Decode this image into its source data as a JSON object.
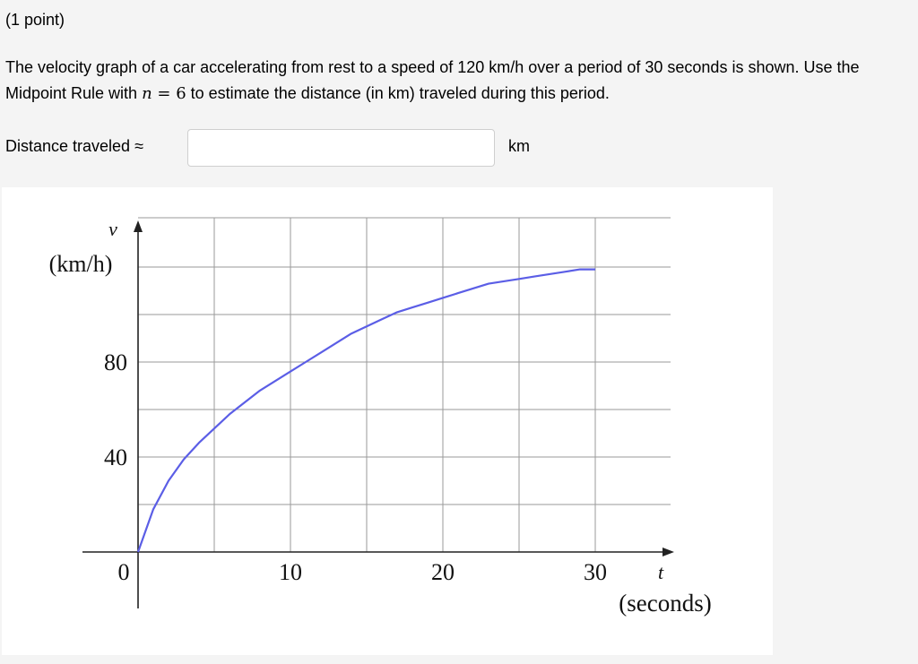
{
  "question": {
    "points": "(1 point)",
    "text_before_n": "The velocity graph of a car accelerating from rest to a speed of 120 km/h over a period of 30 seconds is shown. Use the Midpoint Rule with ",
    "math_var": "n",
    "math_eq": " = 6",
    "text_after_n": " to estimate the distance (in km) traveled during this period."
  },
  "answer": {
    "label": "Distance traveled ≈",
    "value": "",
    "placeholder": "",
    "unit": "km"
  },
  "chart_data": {
    "type": "line",
    "x_axis": {
      "symbol": "t",
      "label": "(seconds)",
      "range": [
        0,
        30
      ],
      "ticks": [
        0,
        10,
        20,
        30
      ],
      "tick_labels": [
        "0",
        "10",
        "20",
        "30"
      ],
      "grid_step": 5
    },
    "y_axis": {
      "symbol": "v",
      "label": "(km/h)",
      "range": [
        0,
        120
      ],
      "ticks": [
        40,
        80
      ],
      "tick_labels": [
        "40",
        "80"
      ],
      "grid_step": 20
    },
    "grid": true,
    "series": [
      {
        "color": "#5b5ee6",
        "x": [
          0,
          1,
          2,
          3,
          4,
          5,
          6,
          7,
          8,
          9,
          10,
          11,
          12,
          13,
          14,
          15,
          16,
          17,
          18,
          19,
          20,
          21,
          22,
          23,
          24,
          25,
          26,
          27,
          28,
          29,
          30
        ],
        "y": [
          0,
          18,
          30,
          39,
          46,
          52,
          58,
          63,
          68,
          72,
          76,
          80,
          84,
          88,
          92,
          95,
          98,
          101,
          103,
          105,
          107,
          109,
          111,
          113,
          114,
          115,
          116,
          117,
          118,
          119,
          119
        ]
      }
    ]
  }
}
